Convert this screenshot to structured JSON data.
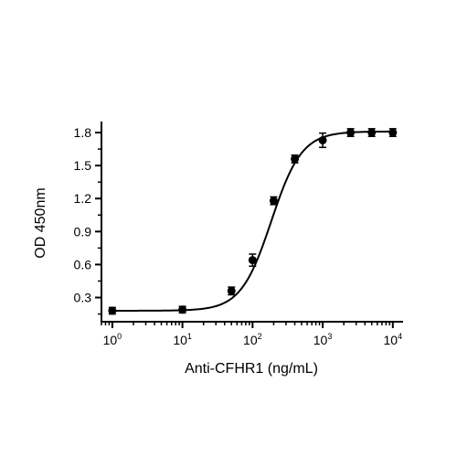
{
  "chart_data": {
    "type": "scatter",
    "xlabel": "Anti-CFHR1 (ng/mL)",
    "ylabel": "OD 450nm",
    "x_scale": "log10",
    "xlim": [
      0.7,
      14000
    ],
    "ylim": [
      0.08,
      1.9
    ],
    "x_ticks": [
      {
        "value": 1,
        "base": "10",
        "exp": "0"
      },
      {
        "value": 10,
        "base": "10",
        "exp": "1"
      },
      {
        "value": 100,
        "base": "10",
        "exp": "2"
      },
      {
        "value": 1000,
        "base": "10",
        "exp": "3"
      },
      {
        "value": 10000,
        "base": "10",
        "exp": "4"
      }
    ],
    "y_ticks": [
      {
        "value": 0.3,
        "label": "0.3"
      },
      {
        "value": 0.6,
        "label": "0.6"
      },
      {
        "value": 0.9,
        "label": "0.9"
      },
      {
        "value": 1.2,
        "label": "1.2"
      },
      {
        "value": 1.5,
        "label": "1.5"
      },
      {
        "value": 1.8,
        "label": "1.8"
      }
    ],
    "grid": false,
    "legend": "none",
    "color": "#000000",
    "points": [
      {
        "x": 1,
        "y": 0.18,
        "err": 0.005
      },
      {
        "x": 10,
        "y": 0.19,
        "err": 0.005
      },
      {
        "x": 50,
        "y": 0.36,
        "err": 0.01
      },
      {
        "x": 100,
        "y": 0.64,
        "err": 0.03
      },
      {
        "x": 200,
        "y": 1.18,
        "err": 0.01
      },
      {
        "x": 400,
        "y": 1.56,
        "err": 0.01
      },
      {
        "x": 1000,
        "y": 1.73,
        "err": 0.04
      },
      {
        "x": 2500,
        "y": 1.8,
        "err": 0.01
      },
      {
        "x": 5000,
        "y": 1.8,
        "err": 0.01
      },
      {
        "x": 10000,
        "y": 1.8,
        "err": 0.01
      }
    ],
    "fit": {
      "model": "4PL",
      "bottom": 0.18,
      "top": 1.81,
      "ec50": 185,
      "hill": 2.0
    }
  }
}
